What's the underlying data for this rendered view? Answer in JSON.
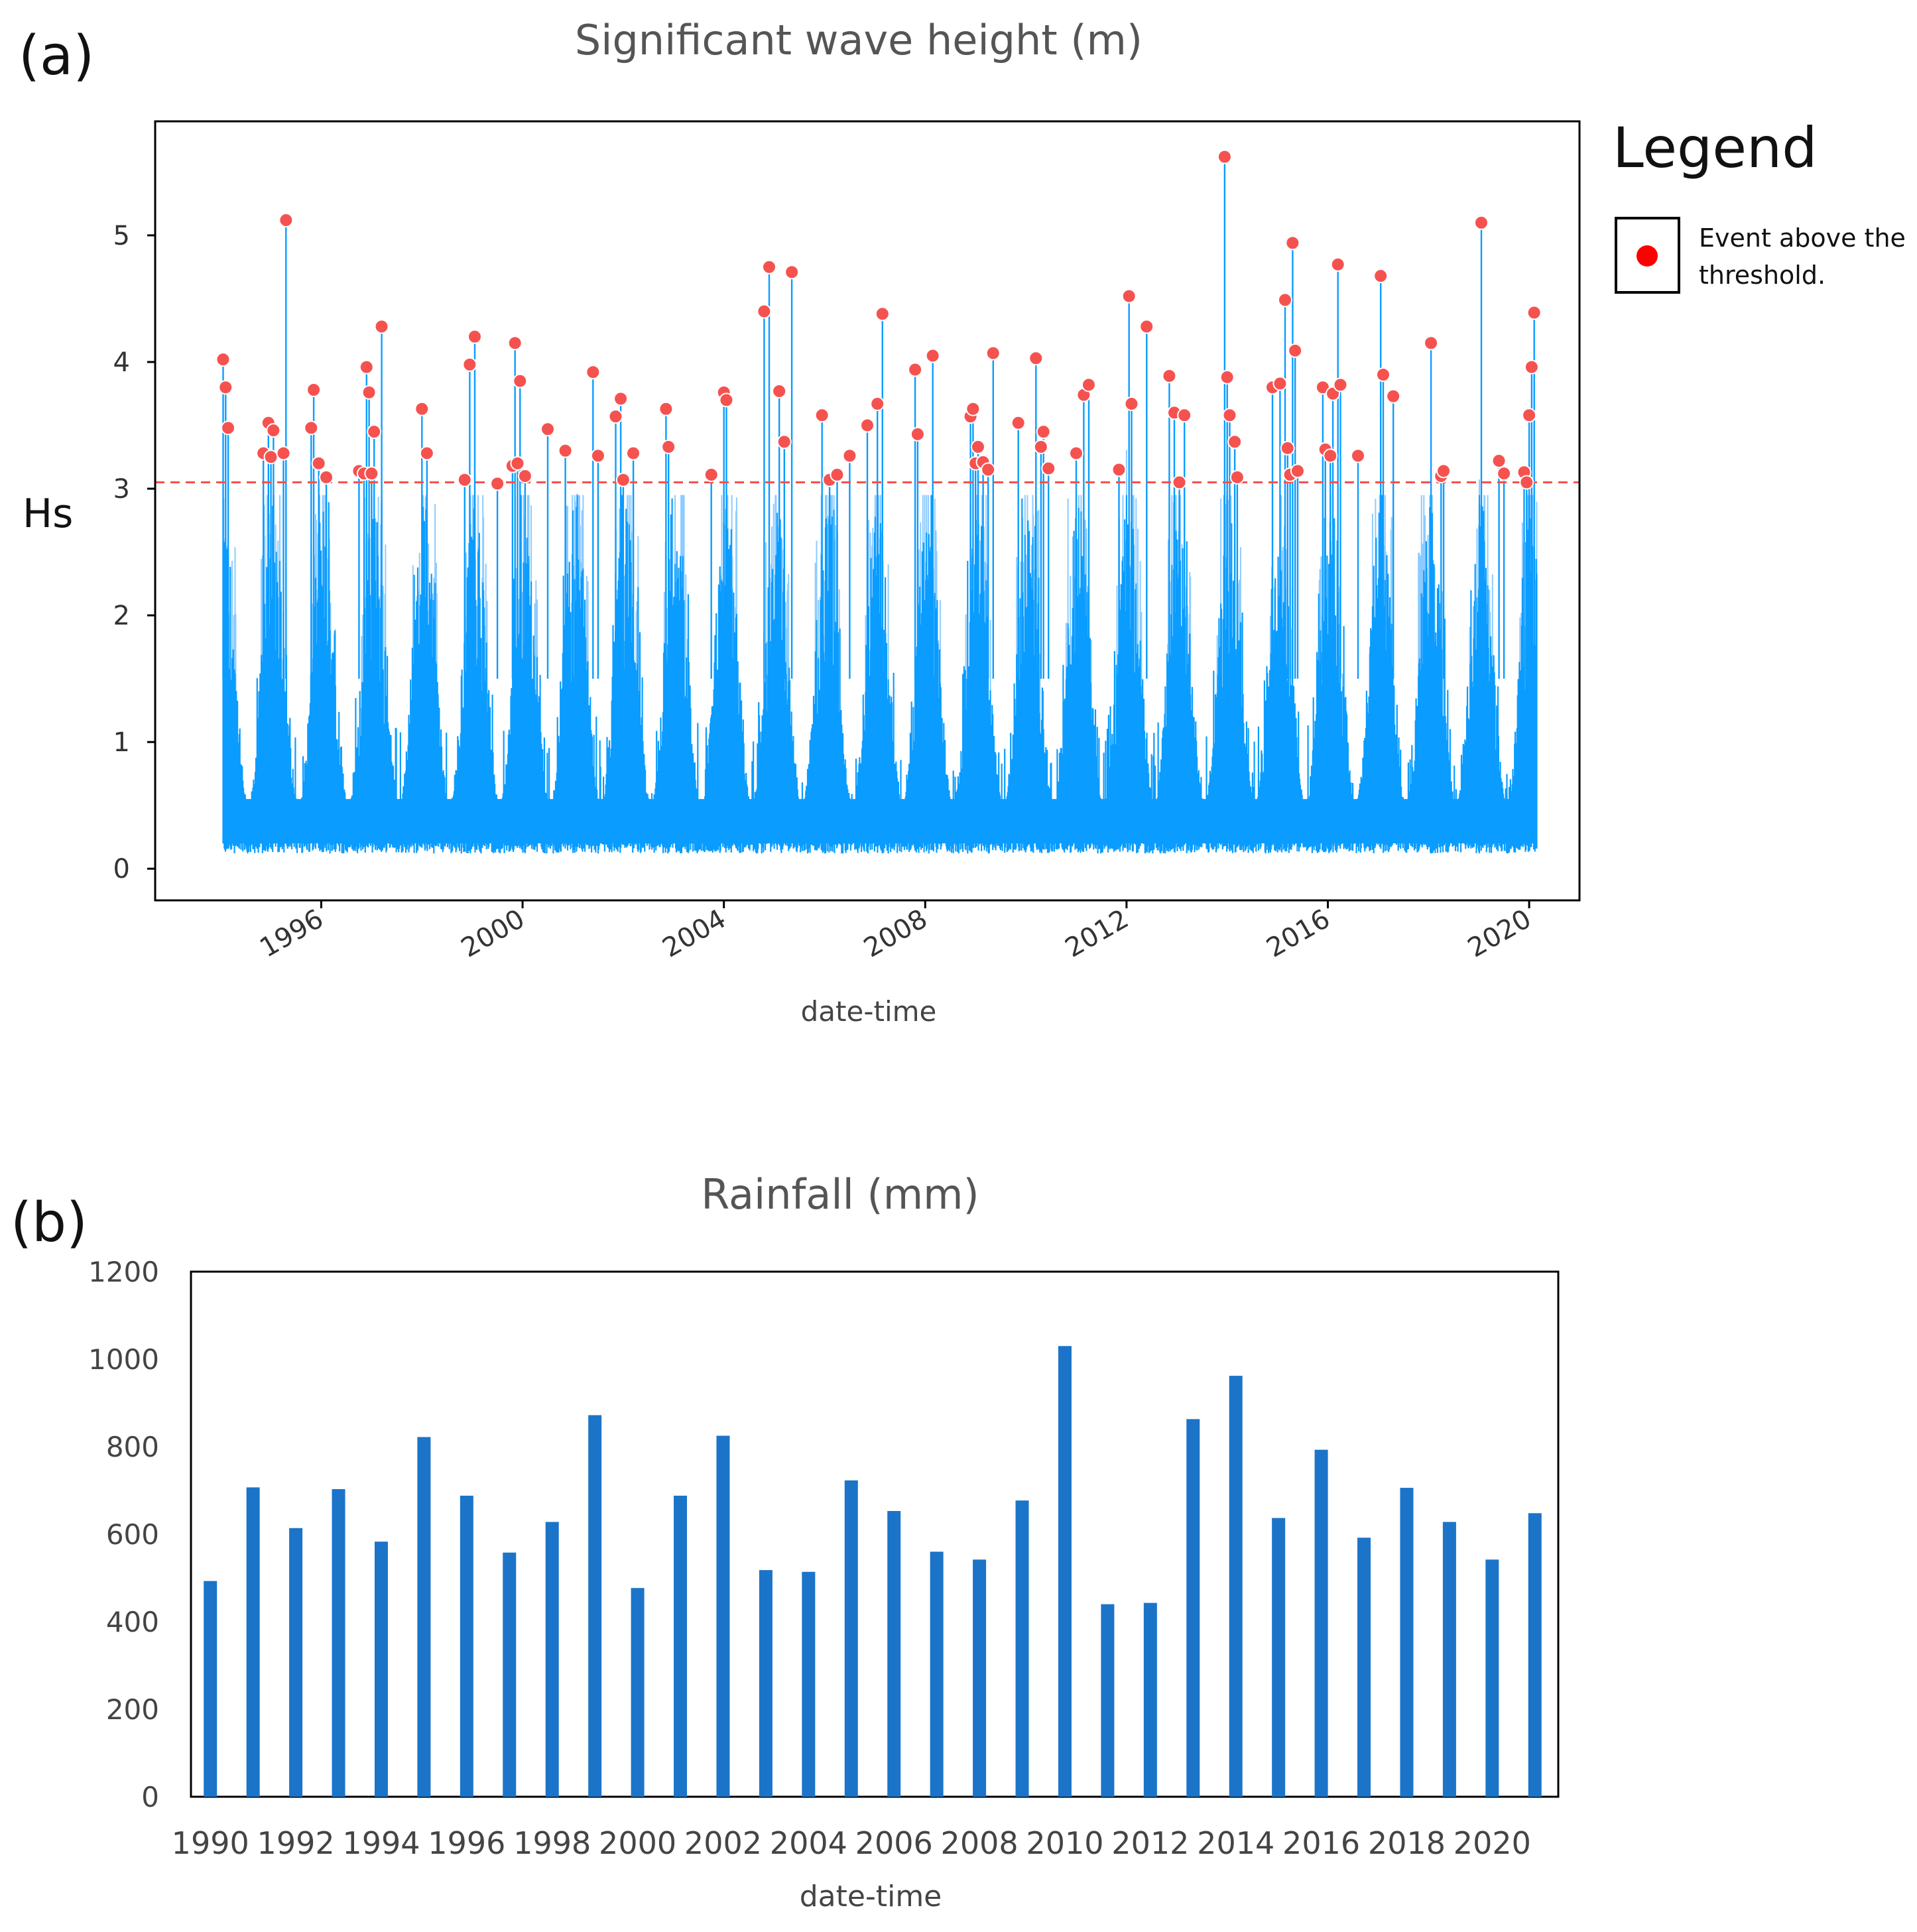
{
  "panel_a": {
    "label": "(a)",
    "legend_title": "Legend",
    "legend_entry_line1": "Event above the",
    "legend_entry_line2": "threshold.",
    "colors": {
      "series": "#0a9cff",
      "series_light": "#8ccbff",
      "event": "#f5524f",
      "threshold": "#f5524f"
    }
  },
  "panel_b": {
    "label": "(b)",
    "colors": {
      "bars": "#1b74c8"
    }
  },
  "chart_data": [
    {
      "type": "line",
      "title": "Significant wave height (m)",
      "xlabel": "date-time",
      "ylabel": "Hs",
      "xlim": [
        1992.7,
        2021.0
      ],
      "ylim": [
        -0.25,
        5.9
      ],
      "xticks": [
        1996,
        2000,
        2004,
        2008,
        2012,
        2016,
        2020
      ],
      "yticks": [
        0,
        1,
        2,
        3,
        4,
        5
      ],
      "threshold": 3.05,
      "legend": [
        "Event above the threshold."
      ],
      "peak_events": [
        {
          "year": 1994.05,
          "hs": 4.02
        },
        {
          "year": 1994.1,
          "hs": 3.8
        },
        {
          "year": 1994.15,
          "hs": 3.48
        },
        {
          "year": 1994.85,
          "hs": 3.28
        },
        {
          "year": 1994.95,
          "hs": 3.52
        },
        {
          "year": 1995.0,
          "hs": 3.25
        },
        {
          "year": 1995.05,
          "hs": 3.46
        },
        {
          "year": 1995.25,
          "hs": 3.28
        },
        {
          "year": 1995.3,
          "hs": 5.12
        },
        {
          "year": 1995.8,
          "hs": 3.48
        },
        {
          "year": 1995.85,
          "hs": 3.78
        },
        {
          "year": 1995.95,
          "hs": 3.2
        },
        {
          "year": 1996.1,
          "hs": 3.09
        },
        {
          "year": 1996.75,
          "hs": 3.14
        },
        {
          "year": 1996.85,
          "hs": 3.12
        },
        {
          "year": 1996.9,
          "hs": 3.96
        },
        {
          "year": 1996.95,
          "hs": 3.76
        },
        {
          "year": 1997.0,
          "hs": 3.12
        },
        {
          "year": 1997.05,
          "hs": 3.45
        },
        {
          "year": 1997.2,
          "hs": 4.28
        },
        {
          "year": 1998.0,
          "hs": 3.63
        },
        {
          "year": 1998.1,
          "hs": 3.28
        },
        {
          "year": 1998.85,
          "hs": 3.07
        },
        {
          "year": 1998.95,
          "hs": 3.98
        },
        {
          "year": 1999.05,
          "hs": 4.2
        },
        {
          "year": 1999.5,
          "hs": 3.04
        },
        {
          "year": 1999.8,
          "hs": 3.18
        },
        {
          "year": 1999.85,
          "hs": 4.15
        },
        {
          "year": 1999.9,
          "hs": 3.2
        },
        {
          "year": 1999.95,
          "hs": 3.85
        },
        {
          "year": 2000.05,
          "hs": 3.1
        },
        {
          "year": 2000.5,
          "hs": 3.47
        },
        {
          "year": 2000.85,
          "hs": 3.3
        },
        {
          "year": 2001.4,
          "hs": 3.92
        },
        {
          "year": 2001.5,
          "hs": 3.26
        },
        {
          "year": 2001.85,
          "hs": 3.57
        },
        {
          "year": 2001.95,
          "hs": 3.71
        },
        {
          "year": 2002.0,
          "hs": 3.07
        },
        {
          "year": 2002.2,
          "hs": 3.28
        },
        {
          "year": 2002.85,
          "hs": 3.63
        },
        {
          "year": 2002.9,
          "hs": 3.33
        },
        {
          "year": 2003.75,
          "hs": 3.11
        },
        {
          "year": 2004.0,
          "hs": 3.76
        },
        {
          "year": 2004.05,
          "hs": 3.7
        },
        {
          "year": 2004.8,
          "hs": 4.4
        },
        {
          "year": 2004.9,
          "hs": 4.75
        },
        {
          "year": 2005.1,
          "hs": 3.77
        },
        {
          "year": 2005.2,
          "hs": 3.37
        },
        {
          "year": 2005.35,
          "hs": 4.71
        },
        {
          "year": 2005.95,
          "hs": 3.58
        },
        {
          "year": 2006.1,
          "hs": 3.07
        },
        {
          "year": 2006.25,
          "hs": 3.11
        },
        {
          "year": 2006.5,
          "hs": 3.26
        },
        {
          "year": 2006.85,
          "hs": 3.5
        },
        {
          "year": 2007.05,
          "hs": 3.67
        },
        {
          "year": 2007.15,
          "hs": 4.38
        },
        {
          "year": 2007.8,
          "hs": 3.94
        },
        {
          "year": 2007.85,
          "hs": 3.43
        },
        {
          "year": 2008.15,
          "hs": 4.05
        },
        {
          "year": 2008.9,
          "hs": 3.57
        },
        {
          "year": 2008.95,
          "hs": 3.63
        },
        {
          "year": 2009.0,
          "hs": 3.2
        },
        {
          "year": 2009.05,
          "hs": 3.33
        },
        {
          "year": 2009.15,
          "hs": 3.21
        },
        {
          "year": 2009.25,
          "hs": 3.15
        },
        {
          "year": 2009.35,
          "hs": 4.07
        },
        {
          "year": 2009.85,
          "hs": 3.52
        },
        {
          "year": 2010.2,
          "hs": 4.03
        },
        {
          "year": 2010.3,
          "hs": 3.33
        },
        {
          "year": 2010.35,
          "hs": 3.45
        },
        {
          "year": 2010.45,
          "hs": 3.16
        },
        {
          "year": 2011.0,
          "hs": 3.28
        },
        {
          "year": 2011.15,
          "hs": 3.74
        },
        {
          "year": 2011.25,
          "hs": 3.82
        },
        {
          "year": 2011.85,
          "hs": 3.15
        },
        {
          "year": 2012.05,
          "hs": 4.52
        },
        {
          "year": 2012.1,
          "hs": 3.67
        },
        {
          "year": 2012.4,
          "hs": 4.28
        },
        {
          "year": 2012.85,
          "hs": 3.89
        },
        {
          "year": 2012.95,
          "hs": 3.6
        },
        {
          "year": 2013.05,
          "hs": 3.05
        },
        {
          "year": 2013.15,
          "hs": 3.58
        },
        {
          "year": 2013.95,
          "hs": 5.62
        },
        {
          "year": 2014.0,
          "hs": 3.88
        },
        {
          "year": 2014.05,
          "hs": 3.58
        },
        {
          "year": 2014.15,
          "hs": 3.37
        },
        {
          "year": 2014.2,
          "hs": 3.09
        },
        {
          "year": 2014.9,
          "hs": 3.8
        },
        {
          "year": 2015.05,
          "hs": 3.83
        },
        {
          "year": 2015.15,
          "hs": 4.49
        },
        {
          "year": 2015.2,
          "hs": 3.32
        },
        {
          "year": 2015.25,
          "hs": 3.11
        },
        {
          "year": 2015.3,
          "hs": 4.94
        },
        {
          "year": 2015.35,
          "hs": 4.09
        },
        {
          "year": 2015.4,
          "hs": 3.14
        },
        {
          "year": 2015.9,
          "hs": 3.8
        },
        {
          "year": 2015.95,
          "hs": 3.31
        },
        {
          "year": 2016.05,
          "hs": 3.26
        },
        {
          "year": 2016.1,
          "hs": 3.75
        },
        {
          "year": 2016.2,
          "hs": 4.77
        },
        {
          "year": 2016.25,
          "hs": 3.82
        },
        {
          "year": 2016.6,
          "hs": 3.26
        },
        {
          "year": 2017.05,
          "hs": 4.68
        },
        {
          "year": 2017.1,
          "hs": 3.9
        },
        {
          "year": 2017.3,
          "hs": 3.73
        },
        {
          "year": 2018.05,
          "hs": 4.15
        },
        {
          "year": 2018.25,
          "hs": 3.1
        },
        {
          "year": 2018.3,
          "hs": 3.14
        },
        {
          "year": 2019.05,
          "hs": 5.1
        },
        {
          "year": 2019.4,
          "hs": 3.22
        },
        {
          "year": 2019.5,
          "hs": 3.12
        },
        {
          "year": 2019.9,
          "hs": 3.13
        },
        {
          "year": 2019.95,
          "hs": 3.05
        },
        {
          "year": 2020.0,
          "hs": 3.58
        },
        {
          "year": 2020.05,
          "hs": 3.96
        },
        {
          "year": 2020.1,
          "hs": 4.39
        }
      ]
    },
    {
      "type": "bar",
      "title": "Rainfall (mm)",
      "xlabel": "date-time",
      "ylabel": "",
      "ylim": [
        0,
        1200
      ],
      "yticks": [
        0,
        200,
        400,
        600,
        800,
        1000,
        1200
      ],
      "categories": [
        "1990",
        "1991",
        "1992",
        "1993",
        "1994",
        "1995",
        "1996",
        "1997",
        "1998",
        "1999",
        "2000",
        "2001",
        "2002",
        "2003",
        "2004",
        "2005",
        "2006",
        "2007",
        "2008",
        "2009",
        "2010",
        "2011",
        "2012",
        "2013",
        "2014",
        "2015",
        "2016",
        "2017",
        "2018",
        "2019",
        "2020",
        "2021"
      ],
      "tick_labels": [
        "1990",
        "1992",
        "1994",
        "1996",
        "1998",
        "2000",
        "2002",
        "2004",
        "2006",
        "2008",
        "2010",
        "2012",
        "2014",
        "2016",
        "2018",
        "2020"
      ],
      "values": [
        493,
        707,
        614,
        703,
        583,
        822,
        688,
        558,
        628,
        872,
        477,
        688,
        825,
        518,
        514,
        723,
        653,
        560,
        542,
        677,
        1030,
        440,
        443,
        863,
        962,
        637,
        793,
        592,
        706,
        628,
        542,
        648
      ]
    }
  ]
}
